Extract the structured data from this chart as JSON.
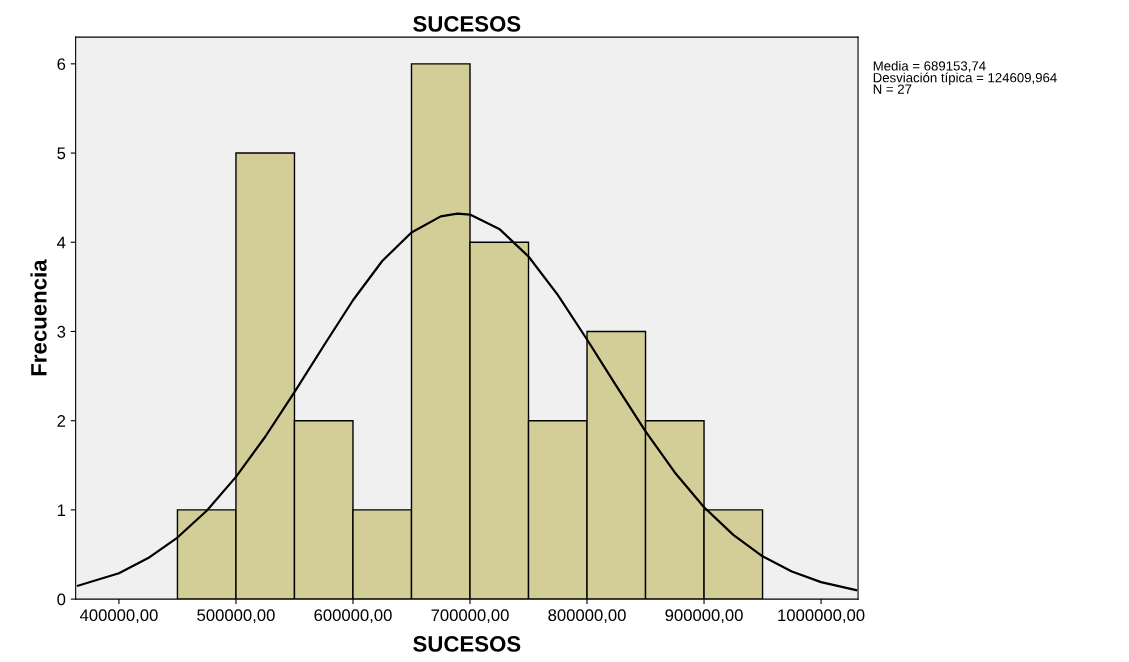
{
  "chart_data": {
    "type": "histogram",
    "title": "SUCESOS",
    "xlabel": "SUCESOS",
    "ylabel": "Frecuencia",
    "bins": [
      450000,
      500000,
      550000,
      600000,
      650000,
      700000,
      750000,
      800000,
      850000,
      900000,
      950000
    ],
    "values": [
      1,
      5,
      2,
      1,
      6,
      4,
      2,
      3,
      2,
      1
    ],
    "color": "#d3ce97",
    "series": [
      {
        "type": "line",
        "color": "#000000",
        "x": [
          365000,
          400000,
          425000,
          450000,
          475000,
          500000,
          525000,
          550000,
          575000,
          600000,
          625000,
          650000,
          675000,
          689154,
          700000,
          725000,
          750000,
          775000,
          800000,
          825000,
          850000,
          875000,
          900000,
          925000,
          950000,
          975000,
          1000000,
          1030000
        ],
        "values": [
          0.15,
          0.29,
          0.46,
          0.69,
          0.99,
          1.37,
          1.82,
          2.32,
          2.84,
          3.35,
          3.79,
          4.11,
          4.29,
          4.32,
          4.31,
          4.15,
          3.84,
          3.41,
          2.91,
          2.39,
          1.88,
          1.42,
          1.03,
          0.72,
          0.48,
          0.31,
          0.19,
          0.1
        ]
      }
    ],
    "xlim": [
      363000,
      1031600
    ],
    "xticks": [
      {
        "value": 400000,
        "label": "400000,00"
      },
      {
        "value": 500000,
        "label": "500000,00"
      },
      {
        "value": 600000,
        "label": "600000,00"
      },
      {
        "value": 700000,
        "label": "700000,00"
      },
      {
        "value": 800000,
        "label": "800000,00"
      },
      {
        "value": 900000,
        "label": "900000,00"
      },
      {
        "value": 1000000,
        "label": "1000000,00"
      }
    ],
    "ylim": [
      0,
      6.3
    ],
    "yticks": [
      0,
      1,
      2,
      3,
      4,
      5,
      6
    ],
    "grid": false,
    "legend": false,
    "annotations": [
      "Media = 689153,74",
      "Desviación típica = 124609,964",
      "N = 27"
    ]
  }
}
